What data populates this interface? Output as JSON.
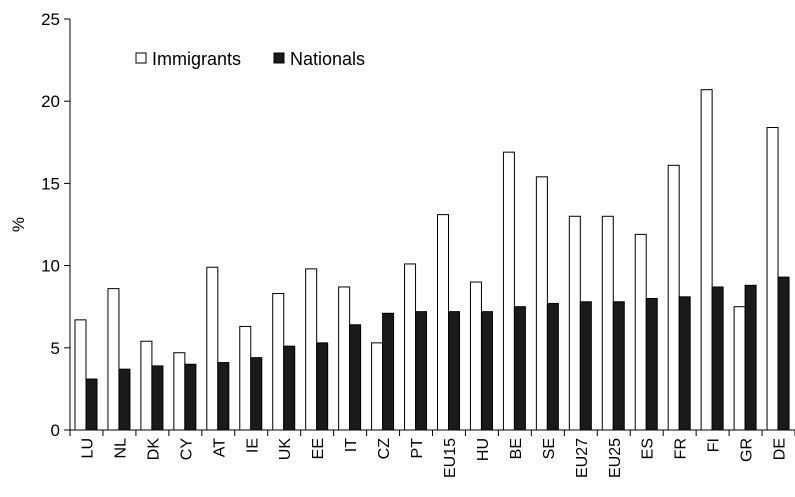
{
  "chart_data": {
    "type": "bar",
    "ylabel": "%",
    "xlabel": "",
    "ylim": [
      0,
      25
    ],
    "yticks": [
      0,
      5,
      10,
      15,
      20,
      25
    ],
    "grid": false,
    "legend_placement": "top-left",
    "categories": [
      "LU",
      "NL",
      "DK",
      "CY",
      "AT",
      "IE",
      "UK",
      "EE",
      "IT",
      "CZ",
      "PT",
      "EU15",
      "HU",
      "BE",
      "SE",
      "EU27",
      "EU25",
      "ES",
      "FR",
      "FI",
      "GR",
      "DE"
    ],
    "series": [
      {
        "name": "Immigrants",
        "color": "#ffffff",
        "values": [
          6.7,
          8.6,
          5.4,
          4.7,
          9.9,
          6.3,
          8.3,
          9.8,
          8.7,
          5.3,
          10.1,
          13.1,
          9.0,
          16.9,
          15.4,
          13.0,
          13.0,
          11.9,
          16.1,
          20.7,
          7.5,
          18.4
        ]
      },
      {
        "name": "Nationals",
        "color": "#1a1a1a",
        "values": [
          3.1,
          3.7,
          3.9,
          4.0,
          4.1,
          4.4,
          5.1,
          5.3,
          6.4,
          7.1,
          7.2,
          7.2,
          7.2,
          7.5,
          7.7,
          7.8,
          7.8,
          8.0,
          8.1,
          8.7,
          8.8,
          9.3
        ]
      }
    ]
  }
}
